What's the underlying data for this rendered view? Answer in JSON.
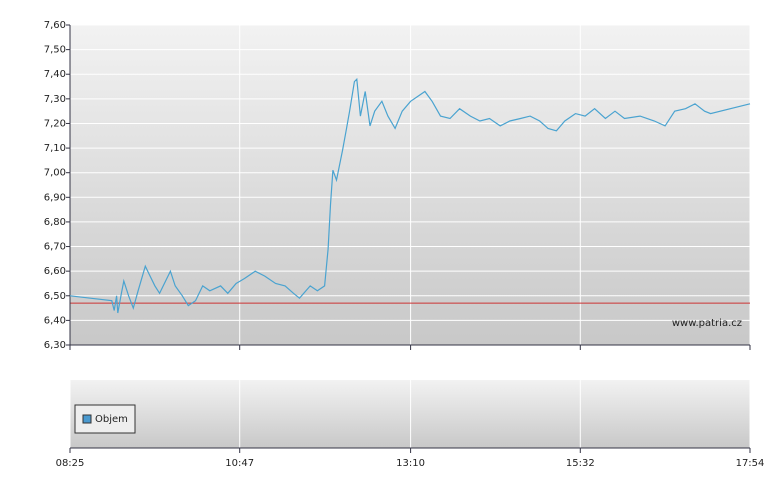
{
  "chart_data": {
    "type": "line",
    "color": "#4aa3d0",
    "x": [
      "08:25",
      "09:00",
      "09:02",
      "09:04",
      "09:05",
      "09:08",
      "09:10",
      "09:14",
      "09:18",
      "09:22",
      "09:28",
      "09:32",
      "09:36",
      "09:40",
      "09:45",
      "09:49",
      "09:53",
      "09:59",
      "10:04",
      "10:10",
      "10:16",
      "10:22",
      "10:31",
      "10:37",
      "10:44",
      "10:51",
      "11:00",
      "11:08",
      "11:17",
      "11:25",
      "11:32",
      "11:37",
      "11:46",
      "11:52",
      "11:58",
      "12:01",
      "12:03",
      "12:05",
      "12:08",
      "12:13",
      "12:16",
      "12:19",
      "12:23",
      "12:25",
      "12:28",
      "12:32",
      "12:36",
      "12:40",
      "12:46",
      "12:51",
      "12:57",
      "13:03",
      "13:10",
      "13:16",
      "13:22",
      "13:28",
      "13:35",
      "13:43",
      "13:51",
      "14:00",
      "14:08",
      "14:16",
      "14:25",
      "14:33",
      "14:42",
      "14:50",
      "14:58",
      "15:05",
      "15:12",
      "15:19",
      "15:28",
      "15:36",
      "15:44",
      "15:53",
      "16:01",
      "16:09",
      "16:22",
      "16:34",
      "16:43",
      "16:51",
      "17:00",
      "17:08",
      "17:16",
      "17:21",
      "17:54"
    ],
    "values": [
      6.5,
      6.48,
      6.44,
      6.5,
      6.43,
      6.51,
      6.56,
      6.5,
      6.45,
      6.52,
      6.62,
      6.58,
      6.54,
      6.51,
      6.56,
      6.6,
      6.54,
      6.5,
      6.46,
      6.48,
      6.54,
      6.52,
      6.54,
      6.51,
      6.55,
      6.57,
      6.6,
      6.58,
      6.55,
      6.54,
      6.51,
      6.49,
      6.54,
      6.52,
      6.54,
      6.69,
      6.87,
      7.01,
      6.97,
      7.09,
      7.17,
      7.25,
      7.37,
      7.38,
      7.23,
      7.33,
      7.19,
      7.25,
      7.29,
      7.23,
      7.18,
      7.25,
      7.29,
      7.31,
      7.33,
      7.29,
      7.23,
      7.22,
      7.26,
      7.23,
      7.21,
      7.22,
      7.19,
      7.21,
      7.22,
      7.23,
      7.21,
      7.18,
      7.17,
      7.21,
      7.24,
      7.23,
      7.26,
      7.22,
      7.25,
      7.22,
      7.23,
      7.21,
      7.19,
      7.25,
      7.26,
      7.28,
      7.25,
      7.24,
      7.28
    ],
    "xlim": [
      "08:25",
      "17:54"
    ],
    "xticks": [
      "08:25",
      "10:47",
      "13:10",
      "15:32",
      "17:54"
    ],
    "ylim": [
      6.3,
      7.6
    ],
    "yticks": [
      {
        "value": 6.3,
        "label": "6,30"
      },
      {
        "value": 6.4,
        "label": "6,40"
      },
      {
        "value": 6.5,
        "label": "6,50"
      },
      {
        "value": 6.6,
        "label": "6,60"
      },
      {
        "value": 6.7,
        "label": "6,70"
      },
      {
        "value": 6.8,
        "label": "6,80"
      },
      {
        "value": 6.9,
        "label": "6,90"
      },
      {
        "value": 7.0,
        "label": "7,00"
      },
      {
        "value": 7.1,
        "label": "7,10"
      },
      {
        "value": 7.2,
        "label": "7,20"
      },
      {
        "value": 7.3,
        "label": "7,30"
      },
      {
        "value": 7.4,
        "label": "7,40"
      },
      {
        "value": 7.5,
        "label": "7,50"
      },
      {
        "value": 7.6,
        "label": "7,60"
      }
    ],
    "grid": true,
    "reference_line": {
      "value": 6.47,
      "color": "#cc3333"
    },
    "watermark": "www.patria.cz",
    "volume_panel": {
      "legend": "Objem",
      "color": "#4a9ad0"
    }
  }
}
